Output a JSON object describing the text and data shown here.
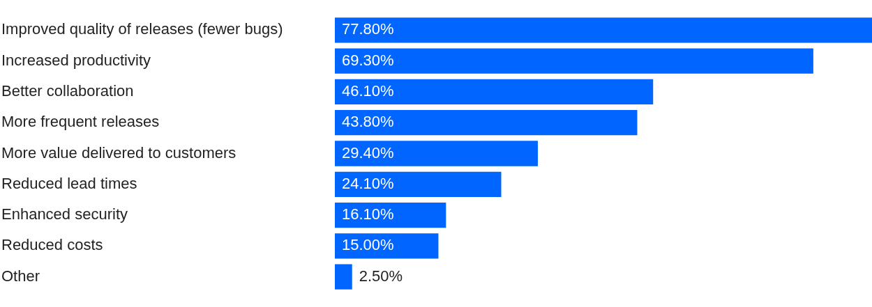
{
  "chart_data": {
    "type": "bar",
    "orientation": "horizontal",
    "categories": [
      "Improved quality of releases (fewer bugs)",
      "Increased productivity",
      "Better collaboration",
      "More frequent releases",
      "More value delivered to customers",
      "Reduced lead times",
      "Enhanced security",
      "Reduced costs",
      "Other"
    ],
    "values": [
      77.8,
      69.3,
      46.1,
      43.8,
      29.4,
      24.1,
      16.1,
      15.0,
      2.5
    ],
    "value_labels": [
      "77.80%",
      "69.30%",
      "46.10%",
      "43.80%",
      "29.40%",
      "24.10%",
      "16.10%",
      "15.00%",
      "2.50%"
    ],
    "color": "#0066ff",
    "grid": false,
    "legend": false
  }
}
